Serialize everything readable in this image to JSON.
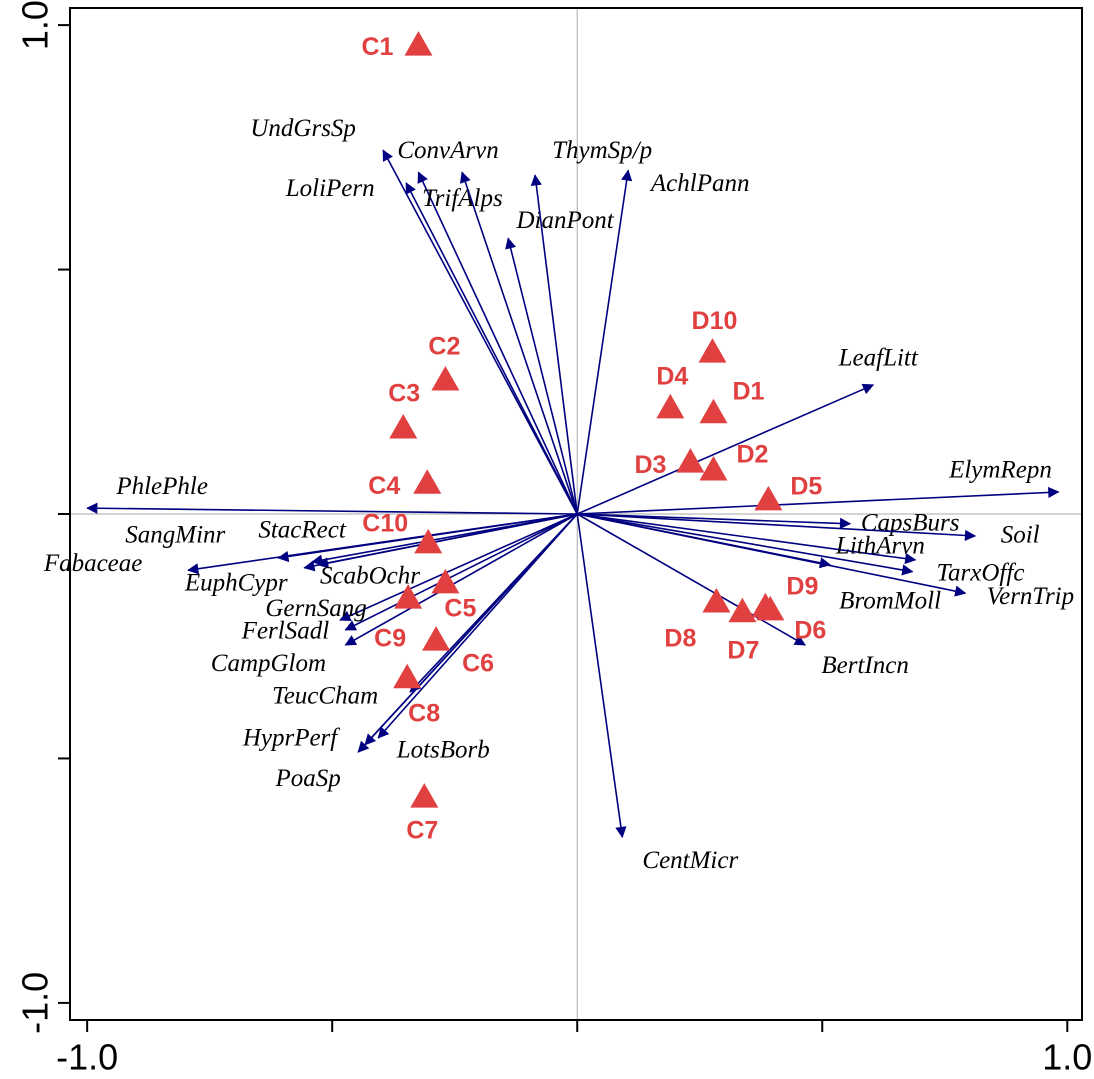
{
  "chart_data": {
    "type": "biplot",
    "xlim": [
      -1.035,
      1.03
    ],
    "ylim": [
      -1.035,
      1.035
    ],
    "xticks": [
      {
        "value": -1,
        "label": "-1.0"
      },
      {
        "value": 1,
        "label": "1.0"
      }
    ],
    "yticks": [
      {
        "value": -1,
        "label": "-1.0"
      },
      {
        "value": 1,
        "label": "1.0"
      }
    ],
    "minor_ticks": [
      -0.5,
      0,
      0.5
    ],
    "vector_color": "#000080",
    "site_color": "#e04040",
    "vectors": [
      {
        "name": "UndGrsSp",
        "x": -0.396,
        "y": 0.744
      },
      {
        "name": "LoliPern",
        "x": -0.349,
        "y": 0.677
      },
      {
        "name": "TrifAlps",
        "x": -0.324,
        "y": 0.699
      },
      {
        "name": "ConvArvn",
        "x": -0.235,
        "y": 0.699
      },
      {
        "name": "DianPont",
        "x": -0.141,
        "y": 0.564
      },
      {
        "name": "ThymSp/p",
        "x": -0.086,
        "y": 0.693
      },
      {
        "name": "AchlPann",
        "x": 0.104,
        "y": 0.703
      },
      {
        "name": "LeafLitt",
        "x": 0.604,
        "y": 0.264
      },
      {
        "name": "ElymRepn",
        "x": 0.982,
        "y": 0.045
      },
      {
        "name": "CapsBurs",
        "x": 0.557,
        "y": -0.02
      },
      {
        "name": "Soil",
        "x": 0.812,
        "y": -0.045
      },
      {
        "name": "LithArvn",
        "x": 0.69,
        "y": -0.094
      },
      {
        "name": "TarxOffc",
        "x": 0.684,
        "y": -0.118
      },
      {
        "name": "VernTrip",
        "x": 0.792,
        "y": -0.162
      },
      {
        "name": "BromMoll",
        "x": 0.516,
        "y": -0.104
      },
      {
        "name": "BertIncn",
        "x": 0.465,
        "y": -0.268
      },
      {
        "name": "CentMicr",
        "x": 0.092,
        "y": -0.661
      },
      {
        "name": "PhlePhle",
        "x": -1.0,
        "y": 0.012
      },
      {
        "name": "SangMinr",
        "x": -0.61,
        "y": -0.09
      },
      {
        "name": "StacRect",
        "x": -0.541,
        "y": -0.098
      },
      {
        "name": "Fabaceae",
        "x": -0.794,
        "y": -0.115
      },
      {
        "name": "EuphCypr",
        "x": -0.557,
        "y": -0.11
      },
      {
        "name": "ScabOchr",
        "x": -0.529,
        "y": -0.104
      },
      {
        "name": "GernSang",
        "x": -0.484,
        "y": -0.217
      },
      {
        "name": "FerlSadl",
        "x": -0.473,
        "y": -0.237
      },
      {
        "name": "CampGlom",
        "x": -0.473,
        "y": -0.268
      },
      {
        "name": "TeucCham",
        "x": -0.341,
        "y": -0.364
      },
      {
        "name": "HyprPerf",
        "x": -0.433,
        "y": -0.472
      },
      {
        "name": "LotsBorb",
        "x": -0.406,
        "y": -0.458
      },
      {
        "name": "PoaSp",
        "x": -0.447,
        "y": -0.487
      }
    ],
    "sites": [
      {
        "name": "C1",
        "x": -0.324,
        "y": 0.959
      },
      {
        "name": "C2",
        "x": -0.269,
        "y": 0.274
      },
      {
        "name": "C3",
        "x": -0.355,
        "y": 0.176
      },
      {
        "name": "C4",
        "x": -0.306,
        "y": 0.063
      },
      {
        "name": "C10",
        "x": -0.304,
        "y": -0.059
      },
      {
        "name": "C5",
        "x": -0.269,
        "y": -0.141
      },
      {
        "name": "C9",
        "x": -0.345,
        "y": -0.172
      },
      {
        "name": "C6",
        "x": -0.288,
        "y": -0.258
      },
      {
        "name": "C8",
        "x": -0.347,
        "y": -0.335
      },
      {
        "name": "C7",
        "x": -0.312,
        "y": -0.579
      },
      {
        "name": "D10",
        "x": 0.276,
        "y": 0.331
      },
      {
        "name": "D4",
        "x": 0.19,
        "y": 0.217
      },
      {
        "name": "D1",
        "x": 0.278,
        "y": 0.207
      },
      {
        "name": "D3",
        "x": 0.231,
        "y": 0.106
      },
      {
        "name": "D2",
        "x": 0.278,
        "y": 0.09
      },
      {
        "name": "D5",
        "x": 0.39,
        "y": 0.029
      },
      {
        "name": "D8",
        "x": 0.284,
        "y": -0.18
      },
      {
        "name": "D7",
        "x": 0.337,
        "y": -0.2
      },
      {
        "name": "D9",
        "x": 0.384,
        "y": -0.19
      },
      {
        "name": "D6",
        "x": 0.394,
        "y": -0.196
      }
    ]
  }
}
